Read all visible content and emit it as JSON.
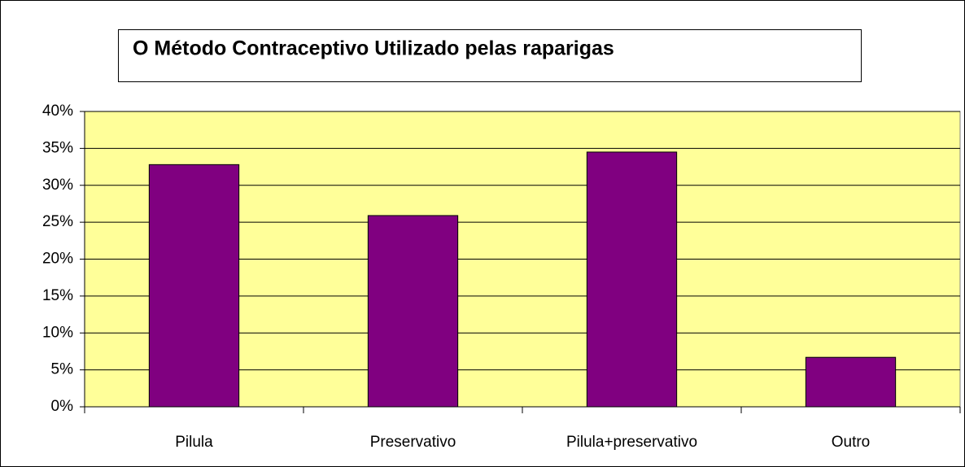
{
  "chart_data": {
    "type": "bar",
    "title": "O Método Contraceptivo Utilizado pelas raparigas",
    "categories": [
      "Pilula",
      "Preservativo",
      "Pilula+preservativo",
      "Outro"
    ],
    "values": [
      32.8,
      25.9,
      34.5,
      6.7
    ],
    "color": "#800080",
    "ylim": [
      0,
      40
    ],
    "yticks": [
      {
        "value": 0,
        "label": "0%"
      },
      {
        "value": 5,
        "label": "5%"
      },
      {
        "value": 10,
        "label": "10%"
      },
      {
        "value": 15,
        "label": "15%"
      },
      {
        "value": 20,
        "label": "20%"
      },
      {
        "value": 25,
        "label": "25%"
      },
      {
        "value": 30,
        "label": "30%"
      },
      {
        "value": 35,
        "label": "35%"
      },
      {
        "value": 40,
        "label": "40%"
      }
    ],
    "grid": true
  }
}
